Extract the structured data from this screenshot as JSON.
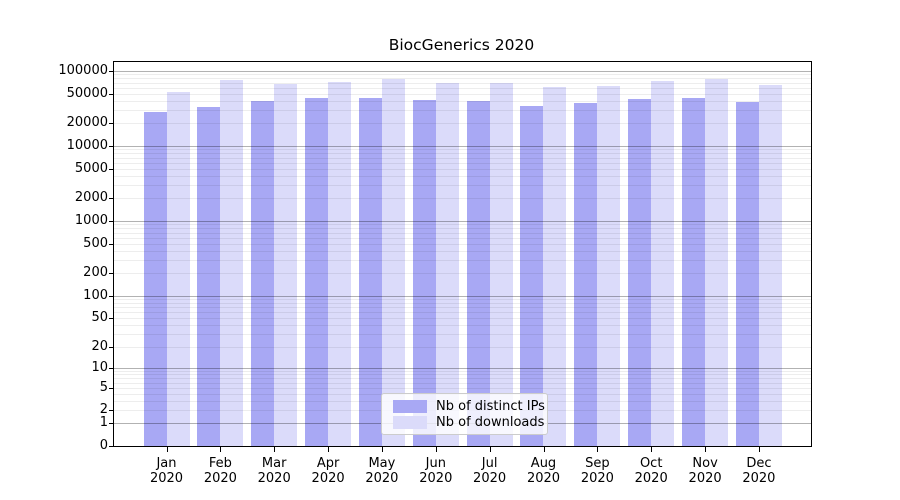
{
  "chart_data": {
    "type": "bar",
    "title": "BiocGenerics 2020",
    "year_label": "2020",
    "categories": [
      "Jan",
      "Feb",
      "Mar",
      "Apr",
      "May",
      "Jun",
      "Jul",
      "Aug",
      "Sep",
      "Oct",
      "Nov",
      "Dec"
    ],
    "series": [
      {
        "name": "Nb of distinct IPs",
        "color": "#a8a8f4",
        "values": [
          28700,
          33000,
          40200,
          43200,
          43700,
          41400,
          39800,
          34400,
          37700,
          42300,
          43700,
          39100
        ]
      },
      {
        "name": "Nb of downloads",
        "color": "#dbdbfa",
        "values": [
          52200,
          75900,
          67000,
          71900,
          78200,
          69100,
          69800,
          61600,
          63600,
          72800,
          79000,
          65500
        ]
      }
    ],
    "yticks": [
      100000,
      50000,
      20000,
      10000,
      5000,
      2000,
      1000,
      500,
      200,
      100,
      50,
      20,
      10,
      5,
      2,
      1,
      0
    ],
    "scale": "log10(1+v)",
    "ylim_top_log": 5.12,
    "grid": "on",
    "gridline_minor_color": "#e8e8e8",
    "gridline_major_color": "#b3b3b3",
    "axis_color": "#000000",
    "legend_position": "lower center"
  }
}
